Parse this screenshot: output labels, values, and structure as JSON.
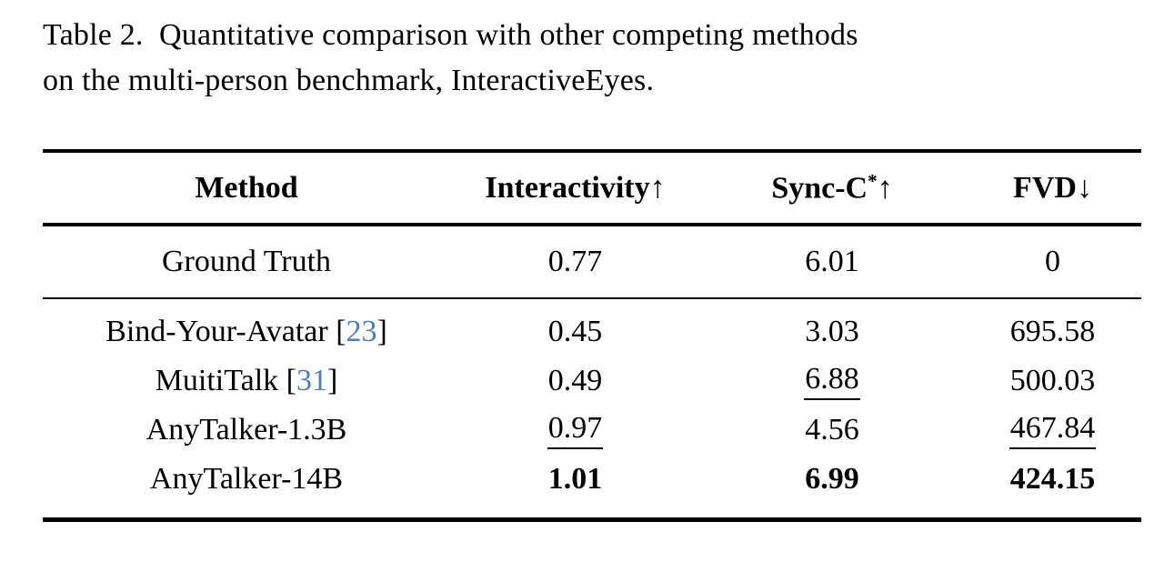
{
  "colors": {
    "text": "#000000",
    "citation_blue": "#4a7ebc",
    "rule": "#000000",
    "background": "#ffffff"
  },
  "caption": {
    "text": "Table 2.  Quantitative comparison with other competing methods\non the multi-person benchmark, InteractiveEyes."
  },
  "table": {
    "columns": [
      {
        "base": "Method",
        "sup": "",
        "arrow": ""
      },
      {
        "base": "Interactivity",
        "sup": "",
        "arrow": "↑"
      },
      {
        "base": "Sync-C",
        "sup": "*",
        "arrow": "↑"
      },
      {
        "base": "FVD",
        "sup": "",
        "arrow": "↓"
      }
    ],
    "groups": [
      {
        "name": "ground-truth",
        "rows": [
          {
            "method": {
              "name": "Ground Truth",
              "cite": null
            },
            "cells": [
              {
                "v": "0.77",
                "bold": false,
                "underline": false
              },
              {
                "v": "6.01",
                "bold": false,
                "underline": false
              },
              {
                "v": "0",
                "bold": false,
                "underline": false
              }
            ]
          }
        ]
      },
      {
        "name": "methods",
        "rows": [
          {
            "method": {
              "name": "Bind-Your-Avatar",
              "cite": "23"
            },
            "cells": [
              {
                "v": "0.45",
                "bold": false,
                "underline": false
              },
              {
                "v": "3.03",
                "bold": false,
                "underline": false
              },
              {
                "v": "695.58",
                "bold": false,
                "underline": false
              }
            ]
          },
          {
            "method": {
              "name": "MuitiTalk",
              "cite": "31"
            },
            "cells": [
              {
                "v": "0.49",
                "bold": false,
                "underline": false
              },
              {
                "v": "6.88",
                "bold": false,
                "underline": true
              },
              {
                "v": "500.03",
                "bold": false,
                "underline": false
              }
            ]
          },
          {
            "method": {
              "name": "AnyTalker-1.3B",
              "cite": null
            },
            "cells": [
              {
                "v": "0.97",
                "bold": false,
                "underline": true
              },
              {
                "v": "4.56",
                "bold": false,
                "underline": false
              },
              {
                "v": "467.84",
                "bold": false,
                "underline": true
              }
            ]
          },
          {
            "method": {
              "name": "AnyTalker-14B",
              "cite": null
            },
            "cells": [
              {
                "v": "1.01",
                "bold": true,
                "underline": false
              },
              {
                "v": "6.99",
                "bold": true,
                "underline": false
              },
              {
                "v": "424.15",
                "bold": true,
                "underline": false
              }
            ]
          }
        ]
      }
    ]
  }
}
